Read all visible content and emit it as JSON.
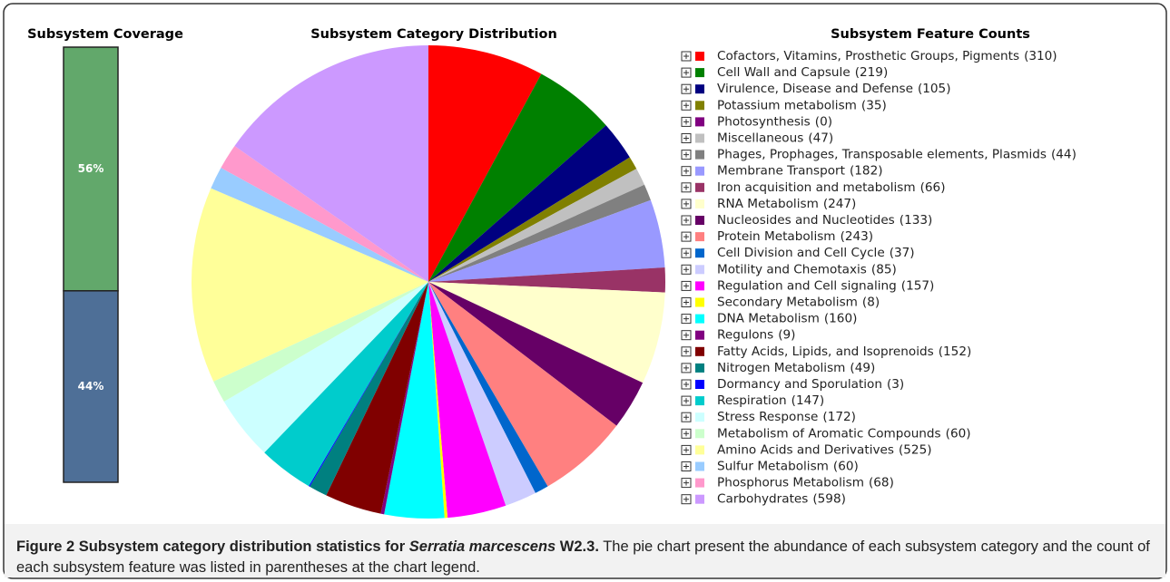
{
  "chart_data": [
    {
      "type": "stacked_bar",
      "title": "Subsystem Coverage",
      "series": [
        {
          "color": "#62a86b",
          "values": [
            56
          ],
          "value_labels": [
            "56%"
          ]
        },
        {
          "color": "#4e6f97",
          "values": [
            44
          ],
          "value_labels": [
            "44%"
          ]
        }
      ]
    },
    {
      "type": "pie",
      "title": "Subsystem Category Distribution",
      "legend_title": "Subsystem Feature Counts",
      "categories": [
        "Cofactors, Vitamins, Prosthetic Groups, Pigments",
        "Cell Wall and Capsule",
        "Virulence, Disease and Defense",
        "Potassium metabolism",
        "Photosynthesis",
        "Miscellaneous",
        "Phages, Prophages, Transposable elements, Plasmids",
        "Membrane Transport",
        "Iron acquisition and metabolism",
        "RNA Metabolism",
        "Nucleosides and Nucleotides",
        "Protein Metabolism",
        "Cell Division and Cell Cycle",
        "Motility and Chemotaxis",
        "Regulation and Cell signaling",
        "Secondary Metabolism",
        "DNA Metabolism",
        "Regulons",
        "Fatty Acids, Lipids, and Isoprenoids",
        "Nitrogen Metabolism",
        "Dormancy and Sporulation",
        "Respiration",
        "Stress Response",
        "Metabolism of Aromatic Compounds",
        "Amino Acids and Derivatives",
        "Sulfur Metabolism",
        "Phosphorus Metabolism",
        "Carbohydrates"
      ],
      "values": [
        310,
        219,
        105,
        35,
        0,
        47,
        44,
        182,
        66,
        247,
        133,
        243,
        37,
        85,
        157,
        8,
        160,
        9,
        152,
        49,
        3,
        147,
        172,
        60,
        525,
        60,
        68,
        598
      ],
      "value_labels": [
        "(310)",
        "(219)",
        "(105)",
        "(35)",
        "(0)",
        "(47)",
        "(44)",
        "(182)",
        "(66)",
        "(247)",
        "(133)",
        "(243)",
        "(37)",
        "(85)",
        "(157)",
        "(8)",
        "(160)",
        "(9)",
        "(152)",
        "(49)",
        "(3)",
        "(147)",
        "(172)",
        "(60)",
        "(525)",
        "(60)",
        "(68)",
        "(598)"
      ],
      "colors": [
        "#ff0000",
        "#008000",
        "#000080",
        "#808000",
        "#800080",
        "#c0c0c0",
        "#808080",
        "#9999ff",
        "#993366",
        "#ffffcc",
        "#660066",
        "#ff8080",
        "#0066cc",
        "#ccccff",
        "#ff00ff",
        "#ffff00",
        "#00ffff",
        "#800080",
        "#800000",
        "#008080",
        "#0000ff",
        "#00cccc",
        "#ccffff",
        "#ccffcc",
        "#ffff99",
        "#99ccff",
        "#ff99cc",
        "#cc99ff"
      ]
    }
  ],
  "caption": {
    "label": "Figure 2 Subsystem category distribution statistics for ",
    "species": "Serratia marcescens",
    "strain": " W2.3.",
    "text": " The pie chart present the abundance of each subsystem category and the count of each subsystem feature was listed in parentheses at the chart legend."
  }
}
